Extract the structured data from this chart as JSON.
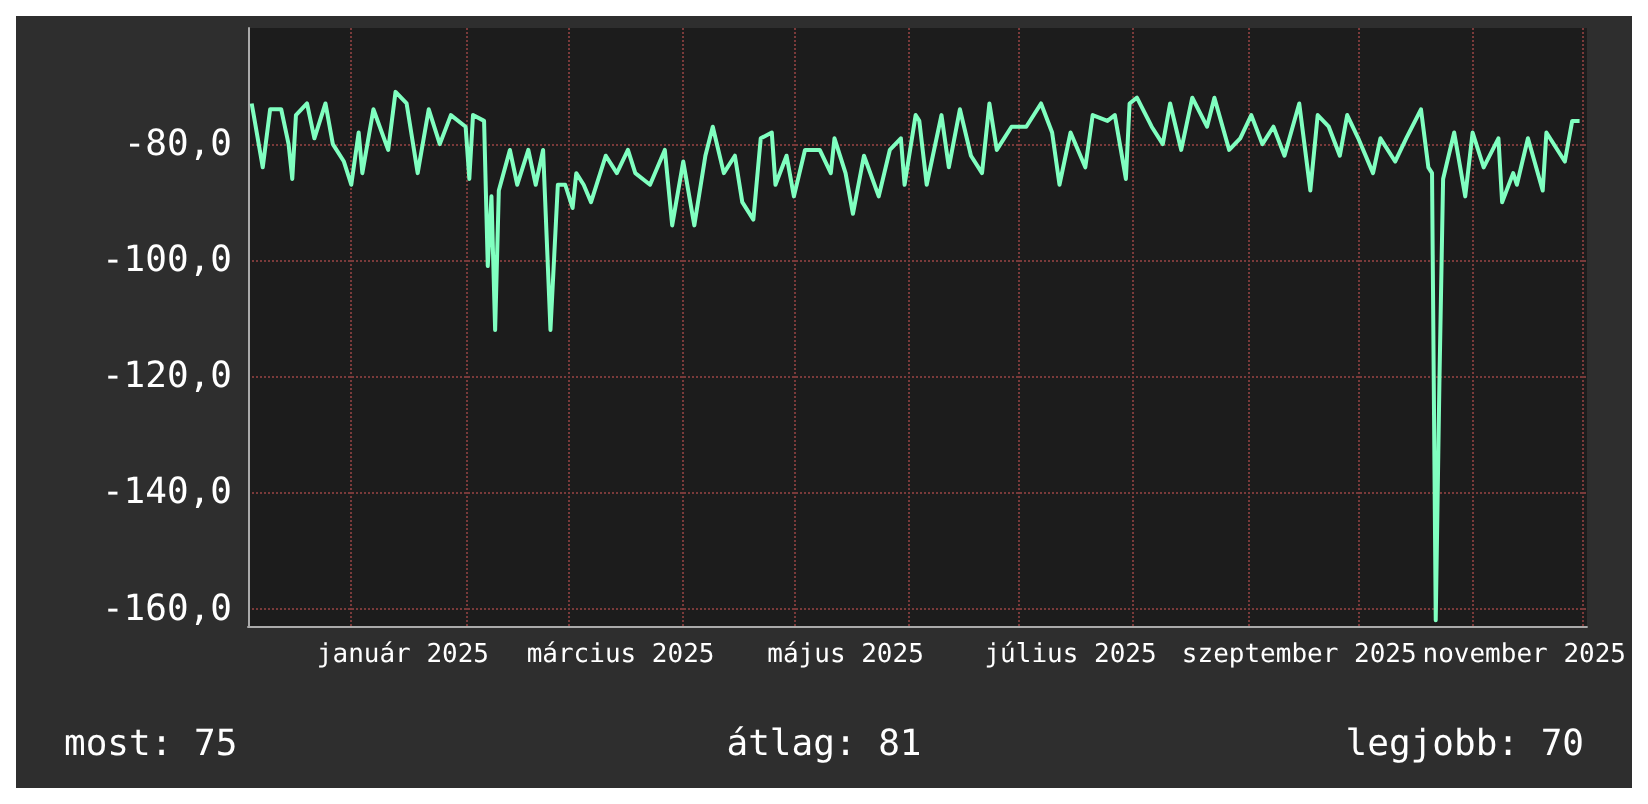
{
  "chart_data": {
    "type": "line",
    "x": [
      "2024-12-05",
      "2024-12-08",
      "2024-12-10",
      "2024-12-13",
      "2024-12-15",
      "2024-12-16",
      "2024-12-17",
      "2024-12-20",
      "2024-12-22",
      "2024-12-25",
      "2024-12-27",
      "2024-12-30",
      "2025-01-01",
      "2025-01-03",
      "2025-01-04",
      "2025-01-07",
      "2025-01-11",
      "2025-01-13",
      "2025-01-16",
      "2025-01-19",
      "2025-01-22",
      "2025-01-25",
      "2025-01-28",
      "2025-02-01",
      "2025-02-02",
      "2025-02-03",
      "2025-02-06",
      "2025-02-07",
      "2025-02-08",
      "2025-02-09",
      "2025-02-10",
      "2025-02-13",
      "2025-02-15",
      "2025-02-18",
      "2025-02-20",
      "2025-02-22",
      "2025-02-24",
      "2025-02-26",
      "2025-02-28",
      "2025-03-02",
      "2025-03-03",
      "2025-03-05",
      "2025-03-07",
      "2025-03-11",
      "2025-03-14",
      "2025-03-17",
      "2025-03-19",
      "2025-03-23",
      "2025-03-27",
      "2025-03-29",
      "2025-04-01",
      "2025-04-04",
      "2025-04-07",
      "2025-04-09",
      "2025-04-12",
      "2025-04-15",
      "2025-04-17",
      "2025-04-20",
      "2025-04-22",
      "2025-04-25",
      "2025-04-26",
      "2025-04-29",
      "2025-05-01",
      "2025-05-04",
      "2025-05-08",
      "2025-05-11",
      "2025-05-12",
      "2025-05-15",
      "2025-05-17",
      "2025-05-20",
      "2025-05-24",
      "2025-05-27",
      "2025-05-30",
      "2025-05-31",
      "2025-06-03",
      "2025-06-04",
      "2025-06-06",
      "2025-06-10",
      "2025-06-12",
      "2025-06-15",
      "2025-06-18",
      "2025-06-21",
      "2025-06-23",
      "2025-06-25",
      "2025-06-29",
      "2025-07-03",
      "2025-07-07",
      "2025-07-10",
      "2025-07-12",
      "2025-07-15",
      "2025-07-19",
      "2025-07-21",
      "2025-07-25",
      "2025-07-27",
      "2025-07-30",
      "2025-07-31",
      "2025-08-02",
      "2025-08-06",
      "2025-08-09",
      "2025-08-11",
      "2025-08-14",
      "2025-08-17",
      "2025-08-21",
      "2025-08-23",
      "2025-08-27",
      "2025-08-30",
      "2025-09-02",
      "2025-09-05",
      "2025-09-08",
      "2025-09-11",
      "2025-09-15",
      "2025-09-18",
      "2025-09-20",
      "2025-09-23",
      "2025-09-26",
      "2025-09-28",
      "2025-10-01",
      "2025-10-05",
      "2025-10-07",
      "2025-10-11",
      "2025-10-14",
      "2025-10-18",
      "2025-10-20",
      "2025-10-21",
      "2025-10-22",
      "2025-10-23",
      "2025-10-24",
      "2025-10-27",
      "2025-10-30",
      "2025-11-01",
      "2025-11-04",
      "2025-11-08",
      "2025-11-09",
      "2025-11-12",
      "2025-11-13",
      "2025-11-16",
      "2025-11-20",
      "2025-11-21",
      "2025-11-26",
      "2025-11-28",
      "2025-11-30"
    ],
    "series": [
      {
        "color": "#80ffc0",
        "values": [
          -73,
          -84,
          -74,
          -74,
          -80,
          -86,
          -75,
          -73,
          -79,
          -73,
          -80,
          -83,
          -87,
          -78,
          -85,
          -74,
          -81,
          -71,
          -73,
          -85,
          -74,
          -80,
          -75,
          -77,
          -86,
          -75,
          -76,
          -101,
          -89,
          -112,
          -88,
          -81,
          -87,
          -81,
          -87,
          -81,
          -112,
          -87,
          -87,
          -91,
          -85,
          -87,
          -90,
          -82,
          -85,
          -81,
          -85,
          -87,
          -81,
          -94,
          -83,
          -94,
          -82,
          -77,
          -85,
          -82,
          -90,
          -93,
          -79,
          -78,
          -87,
          -82,
          -89,
          -81,
          -81,
          -85,
          -79,
          -85,
          -92,
          -82,
          -89,
          -81,
          -79,
          -87,
          -75,
          -76,
          -87,
          -75,
          -84,
          -74,
          -82,
          -85,
          -73,
          -81,
          -77,
          -77,
          -73,
          -78,
          -87,
          -78,
          -84,
          -75,
          -76,
          -75,
          -86,
          -73,
          -72,
          -77,
          -80,
          -73,
          -81,
          -72,
          -77,
          -72,
          -81,
          -79,
          -75,
          -80,
          -77,
          -82,
          -73,
          -88,
          -75,
          -77,
          -82,
          -75,
          -79,
          -85,
          -79,
          -83,
          -79,
          -74,
          -84,
          -85,
          -162,
          -121,
          -86,
          -78,
          -89,
          -78,
          -84,
          -79,
          -90,
          -85,
          -87,
          -79,
          -88,
          -78,
          -83,
          -76,
          -76
        ]
      }
    ],
    "xlim": [
      "2024-12-04",
      "2025-12-02"
    ],
    "xticks": [
      {
        "value": "2025-01-01",
        "label": null
      },
      {
        "value": "2025-02-01",
        "label": null
      },
      {
        "value": "2025-03-01",
        "label": null
      },
      {
        "value": "2025-04-01",
        "label": null
      },
      {
        "value": "2025-05-01",
        "label": null
      },
      {
        "value": "2025-06-01",
        "label": null
      },
      {
        "value": "2025-07-01",
        "label": null
      },
      {
        "value": "2025-08-01",
        "label": null
      },
      {
        "value": "2025-09-01",
        "label": null
      },
      {
        "value": "2025-10-01",
        "label": null
      },
      {
        "value": "2025-11-01",
        "label": null
      },
      {
        "value": "2025-12-01",
        "label": null
      },
      {
        "value": "2025-01-15",
        "label": "január 2025"
      },
      {
        "value": "2025-03-15",
        "label": "március 2025"
      },
      {
        "value": "2025-05-15",
        "label": "május 2025"
      },
      {
        "value": "2025-07-15",
        "label": "július 2025"
      },
      {
        "value": "2025-09-15",
        "label": "szeptember 2025"
      },
      {
        "value": "2025-11-15",
        "label": "november 2025"
      }
    ],
    "ylim": [
      -163,
      -60
    ],
    "yticks": [
      {
        "value": -80,
        "label": "-80,0"
      },
      {
        "value": -100,
        "label": "-100,0"
      },
      {
        "value": -120,
        "label": "-120,0"
      },
      {
        "value": -140,
        "label": "-140,0"
      },
      {
        "value": -160,
        "label": "-160,0"
      }
    ],
    "grid": true,
    "annotations": [
      "most: 75",
      "átlag: 81",
      "legjobb: 70"
    ]
  }
}
